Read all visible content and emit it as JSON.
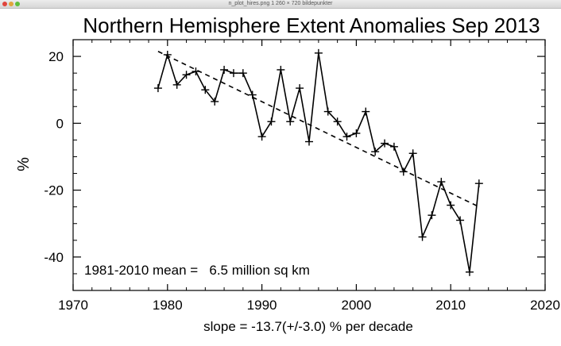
{
  "window": {
    "title": "n_plot_hires.png 1 260 × 720 bildepunkter",
    "button_colors": [
      "#e0443c",
      "#e0a53c",
      "#5fbf3c"
    ]
  },
  "chart_data": {
    "type": "line",
    "title": "Northern Hemisphere Extent Anomalies Sep 2013",
    "xlabel": "slope = -13.7(+/-3.0) % per decade",
    "ylabel": "%",
    "annotation": "1981-2010 mean =   6.5 million sq km",
    "xlim": [
      1970,
      2020
    ],
    "ylim": [
      -50,
      25
    ],
    "x_ticks": [
      1970,
      1980,
      1990,
      2000,
      2010,
      2020
    ],
    "y_ticks": [
      -40,
      -20,
      0,
      20
    ],
    "x_tick_labels": [
      "1970",
      "1980",
      "1990",
      "2000",
      "2010",
      "2020"
    ],
    "y_tick_labels": [
      "-40",
      "-20",
      "0",
      "20"
    ],
    "grid": false,
    "legend": "none",
    "series": [
      {
        "x": [
          1979,
          1980,
          1981,
          1982,
          1983,
          1984,
          1985,
          1986,
          1987,
          1988,
          1989,
          1990,
          1991,
          1992,
          1993,
          1994,
          1995,
          1996,
          1997,
          1998,
          1999,
          2000,
          2001,
          2002,
          2003,
          2004,
          2005,
          2006,
          2007,
          2008,
          2009,
          2010,
          2011,
          2012,
          2013
        ],
        "values": [
          10.5,
          20.5,
          11.5,
          14.5,
          15.5,
          10,
          6.5,
          16,
          15,
          15,
          8.5,
          -4,
          0.5,
          16,
          0.5,
          10.5,
          -5.5,
          21,
          3.5,
          0.5,
          -4,
          -3,
          3.5,
          -8.5,
          -6,
          -7,
          -14.5,
          -9,
          -34,
          -27.5,
          -17.5,
          -24.5,
          -29,
          -44.5,
          -18
        ],
        "line_color": "#000000",
        "marker": "+"
      }
    ],
    "trend_line": {
      "x": [
        1979,
        2013
      ],
      "y": [
        21.5,
        -25
      ],
      "style": "dashed"
    }
  }
}
